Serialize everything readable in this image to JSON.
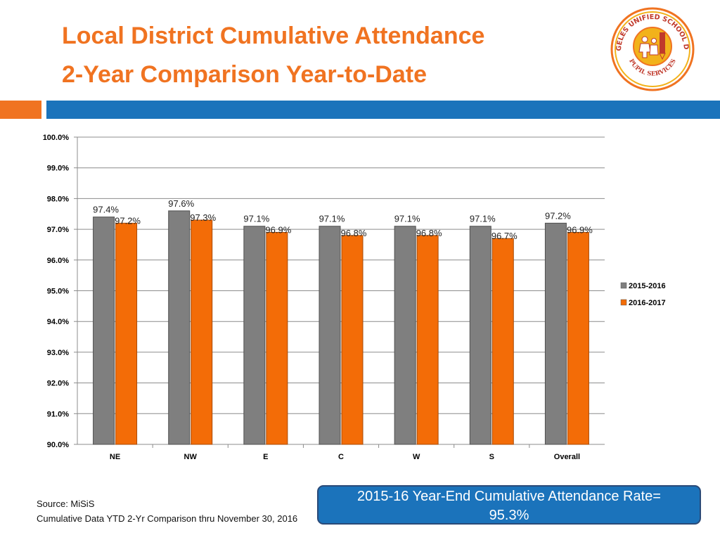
{
  "header": {
    "title_line1": "Local District Cumulative Attendance",
    "title_line2": "2-Year Comparison Year-to-Date"
  },
  "logo": {
    "text_top": "LOS ANGELES UNIFIED SCHOOL DISTRICT",
    "text_bottom": "PUPIL SERVICES",
    "colors": {
      "ring": "#f07321",
      "center": "#f2b21b",
      "text": "#c0392b"
    }
  },
  "colors": {
    "accent_orange": "#f07321",
    "accent_blue": "#1b73bb",
    "series_2015": "#7f7f7f",
    "series_2016": "#f36c07"
  },
  "chart_data": {
    "type": "bar",
    "categories": [
      "NE",
      "NW",
      "E",
      "C",
      "W",
      "S",
      "Overall"
    ],
    "series": [
      {
        "name": "2015-2016",
        "values": [
          97.4,
          97.6,
          97.1,
          97.1,
          97.1,
          97.1,
          97.2
        ],
        "labels": [
          "97.4%",
          "97.6%",
          "97.1%",
          "97.1%",
          "97.1%",
          "97.1%",
          "97.2%"
        ]
      },
      {
        "name": "2016-2017",
        "values": [
          97.2,
          97.3,
          96.9,
          96.8,
          96.8,
          96.7,
          96.9
        ],
        "labels": [
          "97.2%",
          "97.3%",
          "96.9%",
          "96.8%",
          "96.8%",
          "96.7%",
          "96.9%"
        ]
      }
    ],
    "ylim": [
      90.0,
      100.0
    ],
    "yticks": [
      "90.0%",
      "91.0%",
      "92.0%",
      "93.0%",
      "94.0%",
      "95.0%",
      "96.0%",
      "97.0%",
      "98.0%",
      "99.0%",
      "100.0%"
    ],
    "grid": true,
    "legend": "right",
    "title": "",
    "xlabel": "",
    "ylabel": ""
  },
  "footer": {
    "source": "Source: MiSiS",
    "note": "Cumulative  Data  YTD  2-Yr Comparison thru November 30, 2016"
  },
  "callout": {
    "line1": "2015-16 Year-End Cumulative Attendance Rate=",
    "line2": "95.3%"
  }
}
